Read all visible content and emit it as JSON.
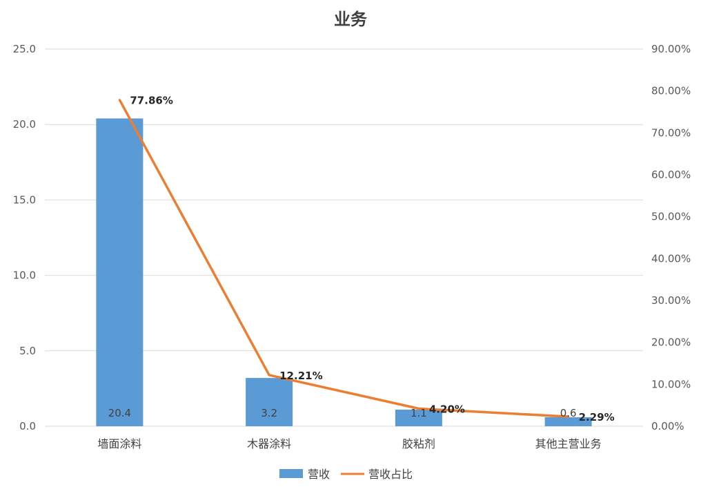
{
  "chart_data": {
    "type": "bar",
    "title": "业务",
    "categories": [
      "墙面涂料",
      "木器涂料",
      "胶粘剂",
      "其他主营业务"
    ],
    "series": [
      {
        "name": "营收",
        "type": "bar",
        "axis": "left",
        "values": [
          20.4,
          3.2,
          1.1,
          0.6
        ],
        "labels": [
          "20.4",
          "3.2",
          "1.1",
          "0.6"
        ]
      },
      {
        "name": "营收占比",
        "type": "line",
        "axis": "right",
        "values": [
          77.86,
          12.21,
          4.2,
          2.29
        ],
        "labels": [
          "77.86%",
          "12.21%",
          "4.20%",
          "2.29%"
        ]
      }
    ],
    "ylim_left": [
      0,
      25
    ],
    "yticks_left": [
      "0.0",
      "5.0",
      "10.0",
      "15.0",
      "20.0",
      "25.0"
    ],
    "ylim_right": [
      0,
      90
    ],
    "yticks_right": [
      "0.00%",
      "10.00%",
      "20.00%",
      "30.00%",
      "40.00%",
      "50.00%",
      "60.00%",
      "70.00%",
      "80.00%",
      "90.00%"
    ],
    "grid": true,
    "legend_position": "bottom",
    "colors": {
      "bar": "#5b9bd5",
      "line": "#ed7d31",
      "grid": "#d9d9d9"
    }
  }
}
